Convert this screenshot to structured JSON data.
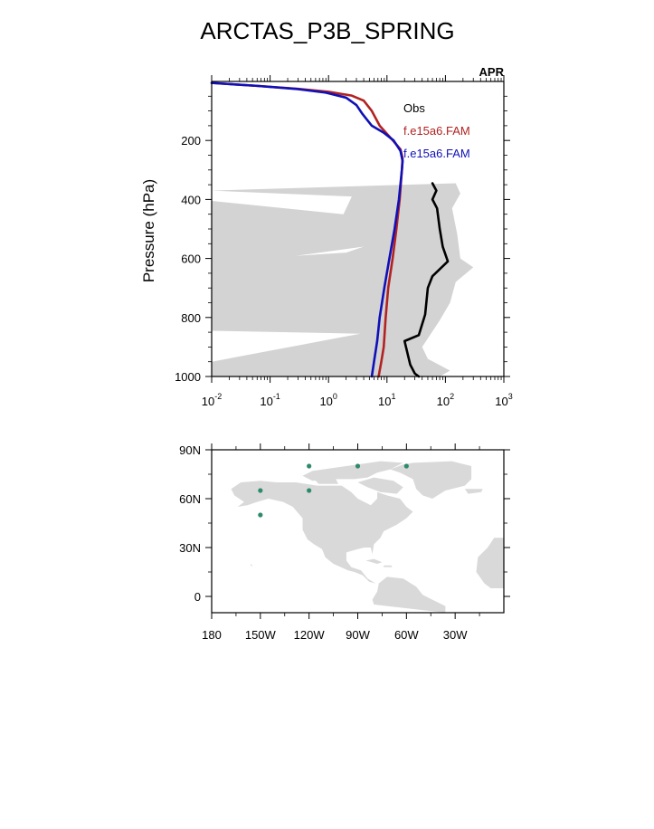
{
  "title": "ARCTAS_P3B_SPRING",
  "chart_data": [
    {
      "type": "line",
      "corner_label": "APR",
      "ylabel": "Pressure (hPa)",
      "xlabel": "",
      "x_scale": "log",
      "xlim": [
        0.01,
        1000
      ],
      "ylim": [
        1000,
        0
      ],
      "y_inverted": true,
      "y_ticks": [
        200,
        400,
        600,
        800,
        1000
      ],
      "x_ticks": [
        {
          "value": 0.01,
          "base": "10",
          "exp": "-2"
        },
        {
          "value": 0.1,
          "base": "10",
          "exp": "-1"
        },
        {
          "value": 1,
          "base": "10",
          "exp": "0"
        },
        {
          "value": 10,
          "base": "10",
          "exp": "1"
        },
        {
          "value": 100,
          "base": "10",
          "exp": "2"
        },
        {
          "value": 1000,
          "base": "10",
          "exp": "3"
        }
      ],
      "legend_placement": "top-right",
      "series": [
        {
          "name": "Obs",
          "color": "#000000",
          "points": [
            [
              60,
              345
            ],
            [
              70,
              370
            ],
            [
              60,
              400
            ],
            [
              72,
              430
            ],
            [
              80,
              500
            ],
            [
              90,
              560
            ],
            [
              110,
              610
            ],
            [
              60,
              660
            ],
            [
              50,
              700
            ],
            [
              45,
              790
            ],
            [
              35,
              860
            ],
            [
              20,
              880
            ],
            [
              25,
              960
            ],
            [
              30,
              990
            ],
            [
              35,
              1000
            ]
          ]
        },
        {
          "name": "f.e15a6.FAM",
          "color": "#b22222",
          "points": [
            [
              0.01,
              5
            ],
            [
              0.06,
              15
            ],
            [
              0.3,
              25
            ],
            [
              1.0,
              35
            ],
            [
              2.5,
              48
            ],
            [
              4.0,
              65
            ],
            [
              5.5,
              100
            ],
            [
              7.5,
              150
            ],
            [
              12.0,
              195
            ],
            [
              17.0,
              230
            ],
            [
              18.5,
              260
            ],
            [
              18.0,
              300
            ],
            [
              16.5,
              400
            ],
            [
              14.5,
              500
            ],
            [
              12.5,
              600
            ],
            [
              10.5,
              700
            ],
            [
              9.5,
              800
            ],
            [
              8.8,
              900
            ],
            [
              8.0,
              950
            ],
            [
              7.2,
              1000
            ]
          ]
        },
        {
          "name": "f.e15a6.FAM",
          "color": "#1010b8",
          "points": [
            [
              0.01,
              5
            ],
            [
              0.06,
              15
            ],
            [
              0.3,
              26
            ],
            [
              0.9,
              38
            ],
            [
              2.0,
              55
            ],
            [
              3.0,
              80
            ],
            [
              3.8,
              110
            ],
            [
              5.5,
              150
            ],
            [
              9.0,
              175
            ],
            [
              13.0,
              200
            ],
            [
              17.0,
              235
            ],
            [
              18.5,
              270
            ],
            [
              18.0,
              300
            ],
            [
              16.0,
              400
            ],
            [
              13.5,
              500
            ],
            [
              11.0,
              600
            ],
            [
              9.0,
              700
            ],
            [
              7.5,
              800
            ],
            [
              6.8,
              880
            ],
            [
              6.0,
              950
            ],
            [
              5.5,
              1000
            ]
          ]
        }
      ],
      "spread_band": {
        "color": "#d3d3d3",
        "left": [
          [
            0.01,
            370
          ],
          [
            2.5,
            390
          ],
          [
            1.8,
            450
          ],
          [
            0.01,
            405
          ],
          [
            0.01,
            630
          ],
          [
            4.0,
            560
          ],
          [
            2.0,
            580
          ],
          [
            0.01,
            610
          ],
          [
            0.01,
            845
          ],
          [
            3.5,
            855
          ],
          [
            0.01,
            950
          ],
          [
            0.01,
            1000
          ],
          [
            15.0,
            1000
          ]
        ],
        "right": [
          [
            150,
            345
          ],
          [
            180,
            380
          ],
          [
            130,
            430
          ],
          [
            160,
            520
          ],
          [
            180,
            600
          ],
          [
            300,
            630
          ],
          [
            150,
            680
          ],
          [
            120,
            750
          ],
          [
            80,
            810
          ],
          [
            40,
            900
          ],
          [
            50,
            940
          ],
          [
            120,
            980
          ],
          [
            80,
            1000
          ]
        ]
      }
    },
    {
      "type": "scatter",
      "x_ticks": [
        "180",
        "150W",
        "120W",
        "90W",
        "60W",
        "30W"
      ],
      "x_tick_lon": [
        -180,
        -150,
        -120,
        -90,
        -60,
        -30
      ],
      "y_ticks": [
        "90N",
        "60N",
        "30N",
        "0"
      ],
      "y_tick_lat": [
        90,
        60,
        30,
        0
      ],
      "lon_range": [
        -180,
        0
      ],
      "lat_range": [
        -10,
        90
      ],
      "land_color": "#d9d9d9",
      "marker_color": "#2e8b6a",
      "points": [
        {
          "lon": -120,
          "lat": 80
        },
        {
          "lon": -90,
          "lat": 80
        },
        {
          "lon": -60,
          "lat": 80
        },
        {
          "lon": -150,
          "lat": 65
        },
        {
          "lon": -120,
          "lat": 65
        },
        {
          "lon": -150,
          "lat": 50
        }
      ]
    }
  ]
}
